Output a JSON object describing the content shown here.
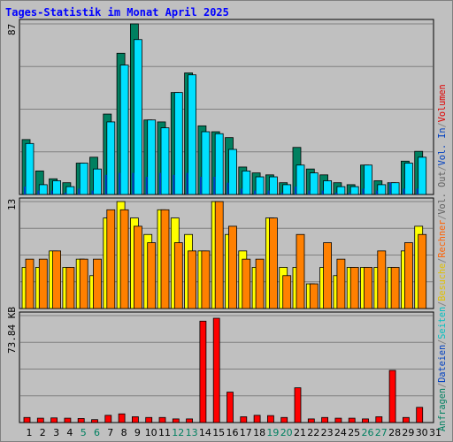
{
  "title": "Tages-Statistik im Monat April 2025",
  "panels": {
    "top": {
      "ymax_label": "87"
    },
    "mid": {
      "ymax_label": "13"
    },
    "bot": {
      "ymax_label": "73.84 KB"
    }
  },
  "right_legend": [
    {
      "text": "Anfragen",
      "color": "#008060"
    },
    {
      "text": "/",
      "color": "#808080"
    },
    {
      "text": "Dateien",
      "color": "#0040c0"
    },
    {
      "text": "/",
      "color": "#808080"
    },
    {
      "text": "Seiten",
      "color": "#00c0c0"
    },
    {
      "text": "/",
      "color": "#808080"
    },
    {
      "text": "Besuche",
      "color": "#e0c000"
    },
    {
      "text": "/",
      "color": "#808080"
    },
    {
      "text": "Rechner",
      "color": "#ff6000"
    },
    {
      "text": "/",
      "color": "#808080"
    },
    {
      "text": "Vol. Out",
      "color": "#606060"
    },
    {
      "text": "/",
      "color": "#808080"
    },
    {
      "text": "Vol. In",
      "color": "#0040c0"
    },
    {
      "text": "/",
      "color": "#808080"
    },
    {
      "text": "Volumen",
      "color": "#e00000"
    }
  ],
  "chart_data": [
    {
      "type": "bar",
      "panel": "top",
      "ylim": [
        0,
        87
      ],
      "categories": [
        "1",
        "2",
        "3",
        "4",
        "5",
        "6",
        "7",
        "8",
        "9",
        "10",
        "11",
        "12",
        "13",
        "14",
        "15",
        "16",
        "17",
        "18",
        "19",
        "20",
        "21",
        "22",
        "23",
        "24",
        "25",
        "26",
        "27",
        "28",
        "29",
        "30"
      ],
      "series": [
        {
          "name": "Anfragen",
          "color": "#008060",
          "values": [
            28,
            12,
            8,
            6,
            16,
            19,
            41,
            72,
            87,
            38,
            37,
            52,
            62,
            35,
            32,
            29,
            14,
            11,
            10,
            6,
            24,
            13,
            10,
            6,
            5,
            15,
            7,
            6,
            17,
            22
          ]
        },
        {
          "name": "Dateien",
          "color": "#00e0ff",
          "values": [
            26,
            5,
            7,
            4,
            16,
            13,
            37,
            66,
            79,
            38,
            34,
            52,
            61,
            32,
            31,
            23,
            12,
            9,
            9,
            5,
            15,
            11,
            7,
            4,
            4,
            15,
            5,
            6,
            16,
            19
          ]
        },
        {
          "name": "Seiten",
          "color": "#0040c0",
          "values": [
            4,
            2,
            2,
            1,
            3,
            2,
            10,
            11,
            11,
            9,
            11,
            10,
            11,
            9,
            9,
            6,
            3,
            2,
            2,
            1,
            4,
            2,
            2,
            1,
            1,
            3,
            2,
            6,
            3,
            3
          ]
        }
      ]
    },
    {
      "type": "bar",
      "panel": "mid",
      "ylim": [
        0,
        13
      ],
      "categories": [
        "1",
        "2",
        "3",
        "4",
        "5",
        "6",
        "7",
        "8",
        "9",
        "10",
        "11",
        "12",
        "13",
        "14",
        "15",
        "16",
        "17",
        "18",
        "19",
        "20",
        "21",
        "22",
        "23",
        "24",
        "25",
        "26",
        "27",
        "28",
        "29",
        "30"
      ],
      "series": [
        {
          "name": "Besuche",
          "color": "#ffff00",
          "values": [
            5,
            5,
            7,
            5,
            6,
            4,
            11,
            13,
            11,
            9,
            12,
            11,
            9,
            7,
            13,
            9,
            7,
            5,
            11,
            5,
            5,
            3,
            5,
            4,
            5,
            5,
            5,
            5,
            7,
            10
          ]
        },
        {
          "name": "Rechner",
          "color": "#ff8000",
          "values": [
            6,
            6,
            7,
            5,
            6,
            6,
            12,
            12,
            10,
            8,
            12,
            8,
            7,
            7,
            13,
            10,
            6,
            6,
            11,
            4,
            9,
            3,
            8,
            6,
            5,
            5,
            7,
            5,
            8,
            9
          ]
        }
      ]
    },
    {
      "type": "bar",
      "panel": "bot",
      "ylim": [
        0,
        73.84
      ],
      "yunit": "KB",
      "categories": [
        "1",
        "2",
        "3",
        "4",
        "5",
        "6",
        "7",
        "8",
        "9",
        "10",
        "11",
        "12",
        "13",
        "14",
        "15",
        "16",
        "17",
        "18",
        "19",
        "20",
        "21",
        "22",
        "23",
        "24",
        "25",
        "26",
        "27",
        "28",
        "29",
        "30"
      ],
      "series": [
        {
          "name": "Volumen",
          "color": "#ff0000",
          "values": [
            3.5,
            3,
            3.2,
            3,
            2.8,
            2,
            5,
            6,
            4,
            3.5,
            3.5,
            2.5,
            2.5,
            70,
            72,
            21,
            4,
            5,
            4.8,
            3.5,
            24,
            2.5,
            3.5,
            3,
            3,
            2.5,
            4,
            36,
            3.5,
            10.5
          ]
        }
      ]
    }
  ],
  "x_labels": [
    {
      "text": "1",
      "color": "#000000"
    },
    {
      "text": "2",
      "color": "#000000"
    },
    {
      "text": "3",
      "color": "#000000"
    },
    {
      "text": "4",
      "color": "#000000"
    },
    {
      "text": "5",
      "color": "#008060"
    },
    {
      "text": "6",
      "color": "#008060"
    },
    {
      "text": "7",
      "color": "#000000"
    },
    {
      "text": "8",
      "color": "#000000"
    },
    {
      "text": "9",
      "color": "#000000"
    },
    {
      "text": "10",
      "color": "#000000"
    },
    {
      "text": "11",
      "color": "#000000"
    },
    {
      "text": "12",
      "color": "#008060"
    },
    {
      "text": "13",
      "color": "#008060"
    },
    {
      "text": "14",
      "color": "#000000"
    },
    {
      "text": "15",
      "color": "#000000"
    },
    {
      "text": "16",
      "color": "#000000"
    },
    {
      "text": "17",
      "color": "#000000"
    },
    {
      "text": "18",
      "color": "#000000"
    },
    {
      "text": "19",
      "color": "#008060"
    },
    {
      "text": "20",
      "color": "#008060"
    },
    {
      "text": "21",
      "color": "#000000"
    },
    {
      "text": "22",
      "color": "#000000"
    },
    {
      "text": "23",
      "color": "#000000"
    },
    {
      "text": "24",
      "color": "#000000"
    },
    {
      "text": "25",
      "color": "#000000"
    },
    {
      "text": "26",
      "color": "#008060"
    },
    {
      "text": "27",
      "color": "#008060"
    },
    {
      "text": "28",
      "color": "#000000"
    },
    {
      "text": "29",
      "color": "#000000"
    },
    {
      "text": "30",
      "color": "#000000"
    },
    {
      "text": "31",
      "color": "#000000"
    }
  ]
}
